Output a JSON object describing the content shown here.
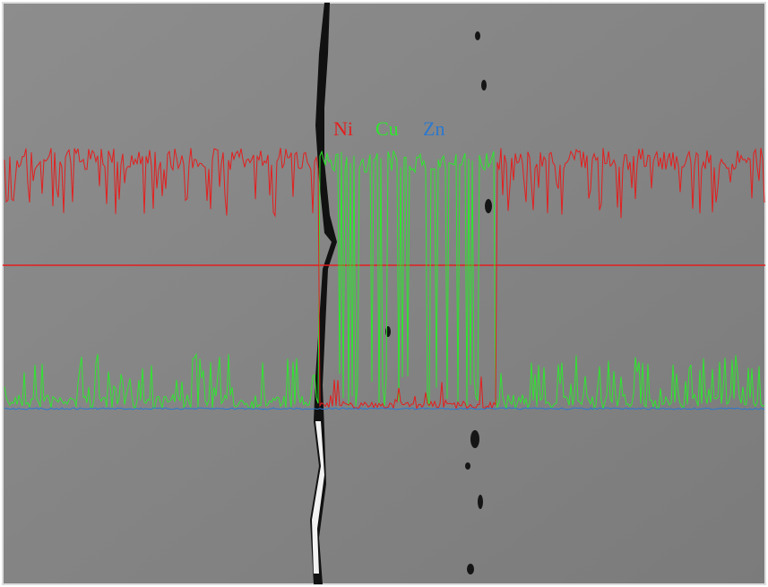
{
  "legend": [
    {
      "label": "Ni",
      "color": "#e41e1e"
    },
    {
      "label": "Cu",
      "color": "#2ee62e"
    },
    {
      "label": "Zn",
      "color": "#2a78d0"
    }
  ]
}
